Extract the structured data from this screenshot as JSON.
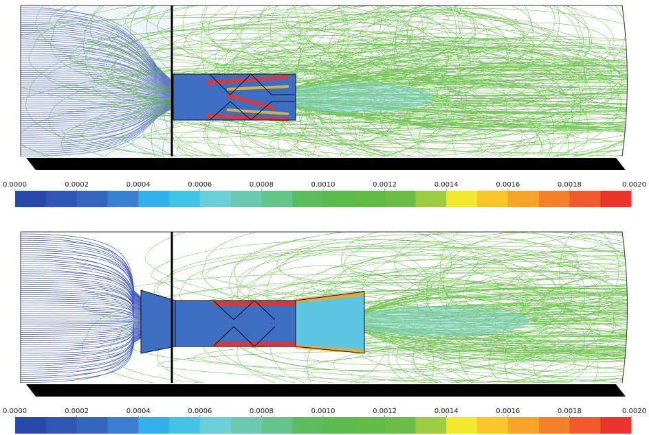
{
  "panels": [
    {
      "colorbar": {
        "ticks": [
          {
            "value": 0,
            "label": "0.0000"
          },
          {
            "value": 0.0002,
            "label": "0.0002"
          },
          {
            "value": 0.0004,
            "label": "0.0004"
          },
          {
            "value": 0.0006,
            "label": "0.0006"
          },
          {
            "value": 0.0008,
            "label": "0.0008"
          },
          {
            "value": 0.001,
            "label": "0.0010"
          },
          {
            "value": 0.0012,
            "label": "0.0012"
          },
          {
            "value": 0.0014,
            "label": "0.0014"
          },
          {
            "value": 0.0016,
            "label": "0.0016"
          },
          {
            "value": 0.0018,
            "label": "0.0018"
          },
          {
            "value": 0.002,
            "label": "0.0020"
          }
        ],
        "colors": [
          "#2a4aa8",
          "#2f56b0",
          "#3366bb",
          "#3a7fcf",
          "#33b0e8",
          "#42c3e6",
          "#6ccfd8",
          "#6dc9b0",
          "#66c38a",
          "#5dbd5e",
          "#5bbb4c",
          "#62bb47",
          "#6cbd45",
          "#9ccc44",
          "#f2e830",
          "#f7c52a",
          "#f6a52a",
          "#f2822a",
          "#ee5a2b",
          "#e8342b"
        ]
      }
    },
    {
      "colorbar": {
        "ticks": [
          {
            "value": 0,
            "label": "0.0000"
          },
          {
            "value": 0.0002,
            "label": "0.0002"
          },
          {
            "value": 0.0004,
            "label": "0.0004"
          },
          {
            "value": 0.0006,
            "label": "0.0006"
          },
          {
            "value": 0.0008,
            "label": "0.0008"
          },
          {
            "value": 0.001,
            "label": "0.0010"
          },
          {
            "value": 0.0012,
            "label": "0.0012"
          },
          {
            "value": 0.0014,
            "label": "0.0014"
          },
          {
            "value": 0.0016,
            "label": "0.0016"
          },
          {
            "value": 0.0018,
            "label": "0.0018"
          },
          {
            "value": 0.002,
            "label": "0.0020"
          }
        ],
        "colors": [
          "#2a4aa8",
          "#2f56b0",
          "#3366bb",
          "#3a7fcf",
          "#33b0e8",
          "#42c3e6",
          "#6ccfd8",
          "#6dc9b0",
          "#66c38a",
          "#5dbd5e",
          "#5bbb4c",
          "#62bb47",
          "#6cbd45",
          "#9ccc44",
          "#f2e830",
          "#f7c52a",
          "#f6a52a",
          "#f2822a",
          "#ee5a2b",
          "#e8342b"
        ]
      }
    }
  ]
}
